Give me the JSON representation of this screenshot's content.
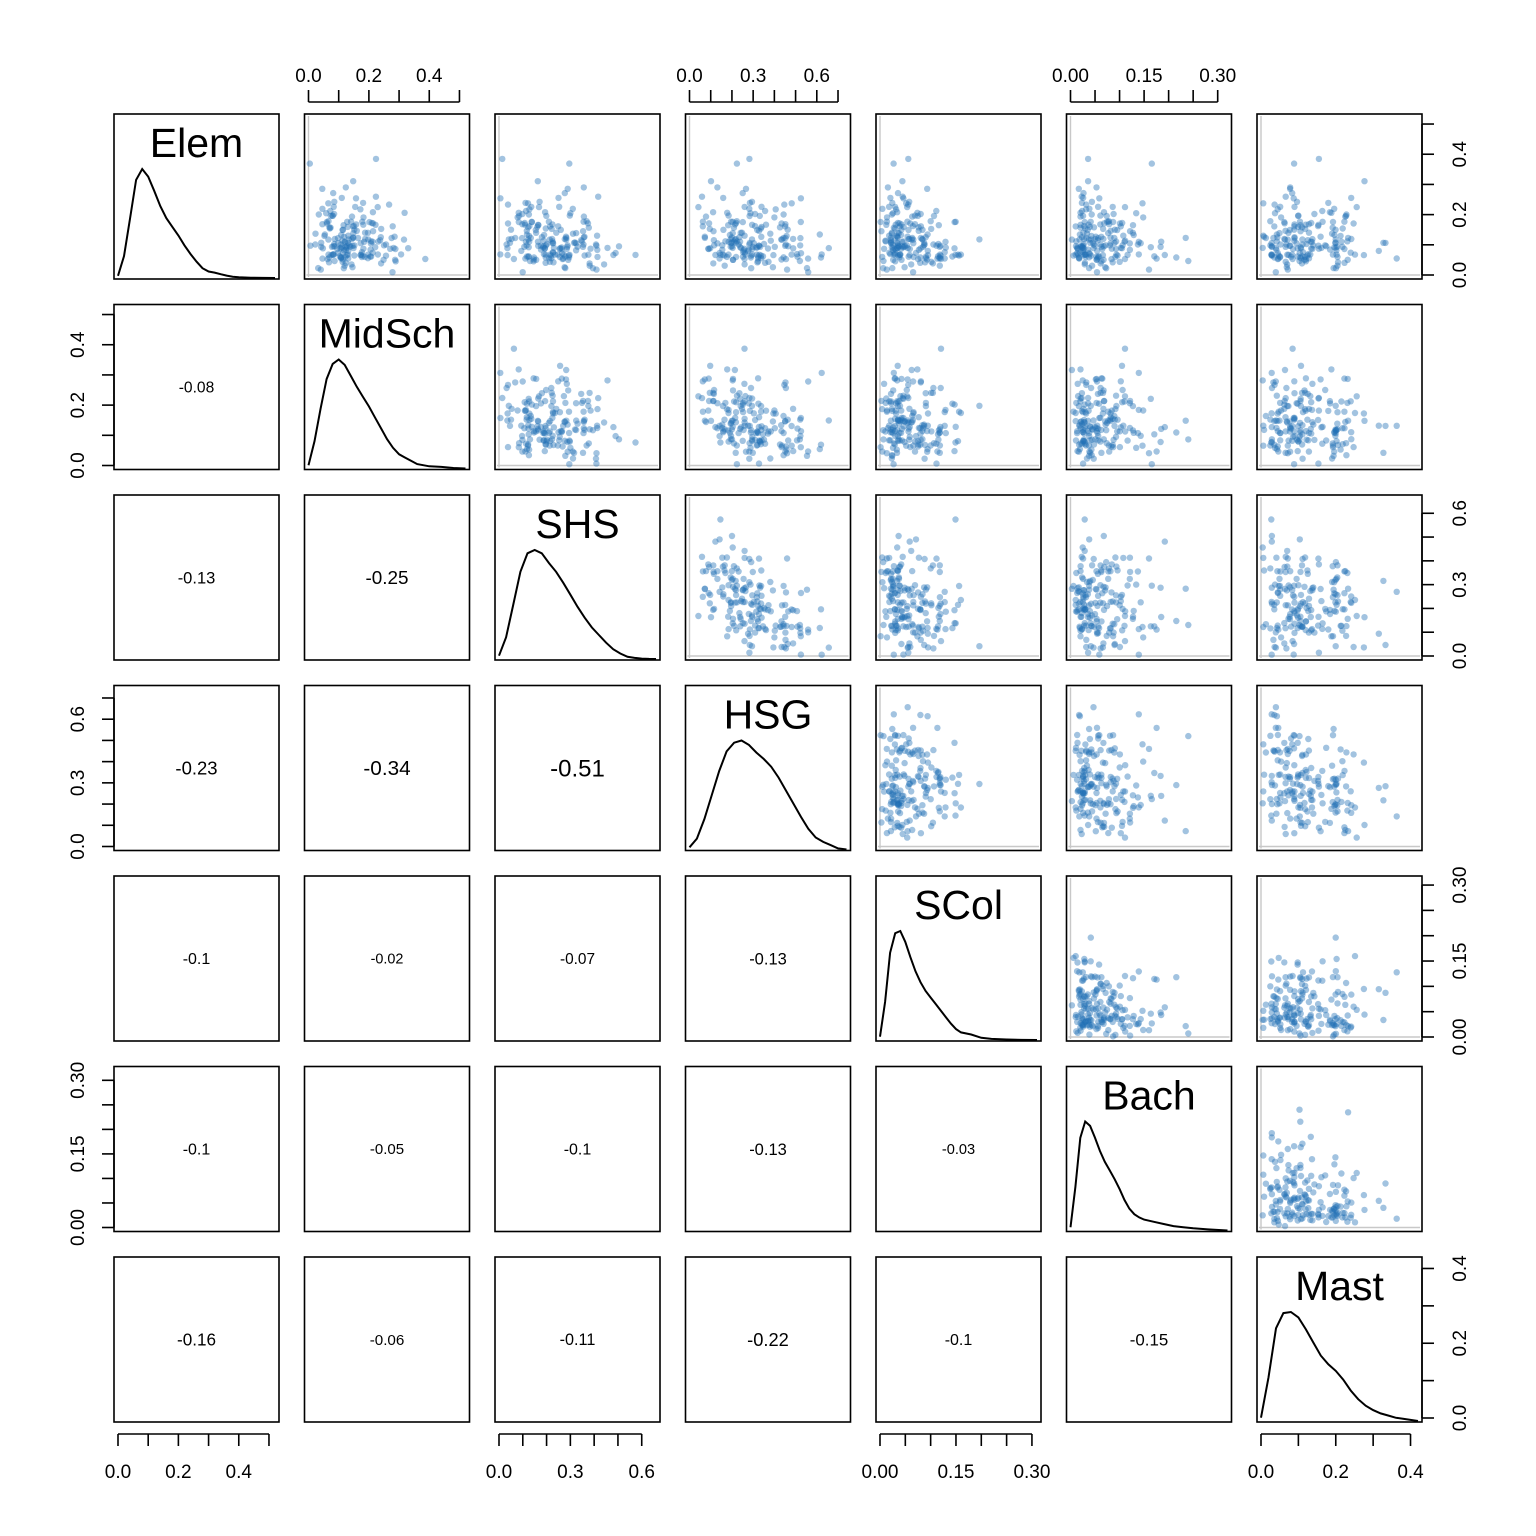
{
  "chart_data": {
    "type": "scatter",
    "layout": "pairs-matrix",
    "variables": [
      "Elem",
      "MidSch",
      "SHS",
      "HSG",
      "SCol",
      "Bach",
      "Mast"
    ],
    "axes": [
      {
        "name": "Elem",
        "range": [
          0,
          0.52
        ],
        "ticks": [
          0.0,
          0.1,
          0.2,
          0.3,
          0.4,
          0.5
        ],
        "labels": [
          "0.0",
          "0.2",
          "0.4"
        ],
        "label_values": [
          0.0,
          0.2,
          0.4
        ]
      },
      {
        "name": "MidSch",
        "range": [
          0,
          0.52
        ],
        "ticks": [
          0.0,
          0.1,
          0.2,
          0.3,
          0.4,
          0.5
        ],
        "labels": [
          "0.0",
          "0.2",
          "0.4"
        ],
        "label_values": [
          0.0,
          0.2,
          0.4
        ]
      },
      {
        "name": "SHS",
        "range": [
          0,
          0.66
        ],
        "ticks": [
          0.0,
          0.1,
          0.2,
          0.3,
          0.4,
          0.5,
          0.6
        ],
        "labels": [
          "0.0",
          "0.3",
          "0.6"
        ],
        "label_values": [
          0.0,
          0.3,
          0.6
        ]
      },
      {
        "name": "HSG",
        "range": [
          0,
          0.74
        ],
        "ticks": [
          0.0,
          0.1,
          0.2,
          0.3,
          0.4,
          0.5,
          0.6,
          0.7
        ],
        "labels": [
          "0.0",
          "0.3",
          "0.6"
        ],
        "label_values": [
          0.0,
          0.3,
          0.6
        ]
      },
      {
        "name": "SCol",
        "range": [
          0,
          0.31
        ],
        "ticks": [
          0.0,
          0.05,
          0.1,
          0.15,
          0.2,
          0.25,
          0.3
        ],
        "labels": [
          "0.00",
          "0.15",
          "0.30"
        ],
        "label_values": [
          0.0,
          0.15,
          0.3
        ]
      },
      {
        "name": "Bach",
        "range": [
          0,
          0.32
        ],
        "ticks": [
          0.0,
          0.05,
          0.1,
          0.15,
          0.2,
          0.25,
          0.3
        ],
        "labels": [
          "0.00",
          "0.15",
          "0.30"
        ],
        "label_values": [
          0.0,
          0.15,
          0.3
        ]
      },
      {
        "name": "Mast",
        "range": [
          0,
          0.42
        ],
        "ticks": [
          0.0,
          0.1,
          0.2,
          0.3,
          0.4
        ],
        "labels": [
          "0.0",
          "0.2",
          "0.4"
        ],
        "label_values": [
          0.0,
          0.2,
          0.4
        ]
      }
    ],
    "correlations": [
      {
        "row": 2,
        "col": 1,
        "value": -0.08,
        "label": "-0.08"
      },
      {
        "row": 3,
        "col": 1,
        "value": -0.13,
        "label": "-0.13"
      },
      {
        "row": 3,
        "col": 2,
        "value": -0.25,
        "label": "-0.25"
      },
      {
        "row": 4,
        "col": 1,
        "value": -0.23,
        "label": "-0.23"
      },
      {
        "row": 4,
        "col": 2,
        "value": -0.34,
        "label": "-0.34"
      },
      {
        "row": 4,
        "col": 3,
        "value": -0.51,
        "label": "-0.51"
      },
      {
        "row": 5,
        "col": 1,
        "value": -0.1,
        "label": "-0.1"
      },
      {
        "row": 5,
        "col": 2,
        "value": -0.02,
        "label": "-0.02"
      },
      {
        "row": 5,
        "col": 3,
        "value": -0.07,
        "label": "-0.07"
      },
      {
        "row": 5,
        "col": 4,
        "value": -0.13,
        "label": "-0.13"
      },
      {
        "row": 6,
        "col": 1,
        "value": -0.1,
        "label": "-0.1"
      },
      {
        "row": 6,
        "col": 2,
        "value": -0.05,
        "label": "-0.05"
      },
      {
        "row": 6,
        "col": 3,
        "value": -0.1,
        "label": "-0.1"
      },
      {
        "row": 6,
        "col": 4,
        "value": -0.13,
        "label": "-0.13"
      },
      {
        "row": 6,
        "col": 5,
        "value": -0.03,
        "label": "-0.03"
      },
      {
        "row": 7,
        "col": 1,
        "value": -0.16,
        "label": "-0.16"
      },
      {
        "row": 7,
        "col": 2,
        "value": -0.06,
        "label": "-0.06"
      },
      {
        "row": 7,
        "col": 3,
        "value": -0.11,
        "label": "-0.11"
      },
      {
        "row": 7,
        "col": 4,
        "value": -0.22,
        "label": "-0.22"
      },
      {
        "row": 7,
        "col": 5,
        "value": -0.1,
        "label": "-0.1"
      },
      {
        "row": 7,
        "col": 6,
        "value": -0.15,
        "label": "-0.15"
      }
    ],
    "densities": [
      {
        "name": "Elem",
        "x": [
          0.0,
          0.02,
          0.04,
          0.06,
          0.08,
          0.1,
          0.12,
          0.14,
          0.16,
          0.18,
          0.2,
          0.22,
          0.24,
          0.26,
          0.28,
          0.3,
          0.32,
          0.34,
          0.36,
          0.38,
          0.4,
          0.44,
          0.48,
          0.52
        ],
        "y": [
          0.02,
          0.2,
          0.55,
          0.9,
          1.0,
          0.93,
          0.8,
          0.66,
          0.55,
          0.47,
          0.39,
          0.3,
          0.22,
          0.15,
          0.09,
          0.06,
          0.05,
          0.035,
          0.022,
          0.012,
          0.006,
          0.003,
          0.001,
          0.0
        ]
      },
      {
        "name": "MidSch",
        "x": [
          0.0,
          0.02,
          0.04,
          0.06,
          0.08,
          0.1,
          0.12,
          0.14,
          0.16,
          0.18,
          0.2,
          0.22,
          0.24,
          0.26,
          0.28,
          0.3,
          0.32,
          0.34,
          0.36,
          0.38,
          0.4,
          0.44,
          0.48,
          0.52
        ],
        "y": [
          0.03,
          0.25,
          0.55,
          0.82,
          0.96,
          1.0,
          0.95,
          0.85,
          0.75,
          0.66,
          0.57,
          0.47,
          0.37,
          0.27,
          0.19,
          0.13,
          0.1,
          0.07,
          0.04,
          0.03,
          0.02,
          0.015,
          0.005,
          0.0
        ]
      },
      {
        "name": "SHS",
        "x": [
          0.0,
          0.03,
          0.06,
          0.09,
          0.12,
          0.15,
          0.18,
          0.21,
          0.24,
          0.27,
          0.3,
          0.33,
          0.36,
          0.39,
          0.42,
          0.45,
          0.48,
          0.51,
          0.54,
          0.57,
          0.6,
          0.63,
          0.66
        ],
        "y": [
          0.03,
          0.2,
          0.5,
          0.8,
          0.97,
          1.0,
          0.97,
          0.88,
          0.8,
          0.7,
          0.59,
          0.48,
          0.38,
          0.29,
          0.22,
          0.15,
          0.09,
          0.05,
          0.02,
          0.01,
          0.004,
          0.001,
          0.0
        ]
      },
      {
        "name": "HSG",
        "x": [
          0.0,
          0.035,
          0.07,
          0.105,
          0.14,
          0.175,
          0.21,
          0.245,
          0.28,
          0.315,
          0.35,
          0.385,
          0.42,
          0.455,
          0.49,
          0.525,
          0.56,
          0.595,
          0.63,
          0.665,
          0.7,
          0.74
        ],
        "y": [
          0.02,
          0.1,
          0.28,
          0.5,
          0.72,
          0.9,
          0.98,
          1.0,
          0.96,
          0.89,
          0.83,
          0.76,
          0.66,
          0.54,
          0.42,
          0.3,
          0.19,
          0.11,
          0.07,
          0.04,
          0.01,
          0.0
        ]
      },
      {
        "name": "SCol",
        "x": [
          0.0,
          0.01,
          0.02,
          0.03,
          0.04,
          0.05,
          0.06,
          0.07,
          0.08,
          0.09,
          0.1,
          0.11,
          0.12,
          0.13,
          0.14,
          0.15,
          0.16,
          0.18,
          0.2,
          0.22,
          0.25,
          0.28,
          0.31
        ],
        "y": [
          0.03,
          0.35,
          0.8,
          0.98,
          1.0,
          0.9,
          0.76,
          0.63,
          0.53,
          0.45,
          0.39,
          0.33,
          0.27,
          0.21,
          0.15,
          0.1,
          0.07,
          0.05,
          0.02,
          0.01,
          0.005,
          0.001,
          0.0
        ]
      },
      {
        "name": "Bach",
        "x": [
          0.0,
          0.01,
          0.02,
          0.03,
          0.04,
          0.05,
          0.06,
          0.07,
          0.08,
          0.09,
          0.1,
          0.11,
          0.12,
          0.13,
          0.14,
          0.15,
          0.17,
          0.19,
          0.21,
          0.23,
          0.25,
          0.28,
          0.32
        ],
        "y": [
          0.03,
          0.4,
          0.85,
          1.0,
          0.96,
          0.85,
          0.73,
          0.63,
          0.55,
          0.47,
          0.38,
          0.28,
          0.2,
          0.15,
          0.12,
          0.1,
          0.08,
          0.06,
          0.04,
          0.03,
          0.02,
          0.01,
          0.0
        ]
      },
      {
        "name": "Mast",
        "x": [
          0.0,
          0.02,
          0.04,
          0.06,
          0.08,
          0.1,
          0.12,
          0.14,
          0.16,
          0.18,
          0.2,
          0.22,
          0.24,
          0.26,
          0.28,
          0.3,
          0.32,
          0.34,
          0.36,
          0.38,
          0.4,
          0.42
        ],
        "y": [
          0.03,
          0.4,
          0.85,
          0.99,
          1.0,
          0.95,
          0.84,
          0.72,
          0.6,
          0.52,
          0.46,
          0.38,
          0.28,
          0.2,
          0.14,
          0.1,
          0.07,
          0.05,
          0.03,
          0.02,
          0.01,
          0.0
        ]
      }
    ],
    "scatter_points": 175,
    "point_color": "#2171b5",
    "correlation_text_scale": [
      0.0,
      0.51
    ]
  }
}
